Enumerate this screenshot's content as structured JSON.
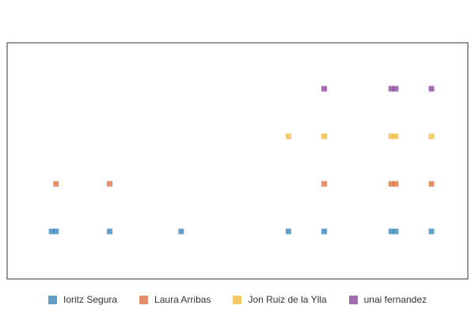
{
  "chart_data": {
    "type": "scatter",
    "title": "",
    "xlabel": "",
    "ylabel": "",
    "grid": false,
    "axes_visible": false,
    "legend_position": "bottom-center",
    "xlim": [
      0,
      100
    ],
    "ylim": [
      0,
      5
    ],
    "series": [
      {
        "name": "Ioritz Segura",
        "color": "#1f77b4",
        "points": [
          {
            "x": 1.0,
            "y": 1
          },
          {
            "x": 2.0,
            "y": 1
          },
          {
            "x": 14.0,
            "y": 1
          },
          {
            "x": 30.0,
            "y": 1
          },
          {
            "x": 54.0,
            "y": 1
          },
          {
            "x": 62.0,
            "y": 1
          },
          {
            "x": 77.0,
            "y": 1
          },
          {
            "x": 78.0,
            "y": 1
          },
          {
            "x": 86.0,
            "y": 1
          }
        ]
      },
      {
        "name": "Laura Arribas",
        "color": "#d95f2b",
        "points": [
          {
            "x": 2.0,
            "y": 2
          },
          {
            "x": 14.0,
            "y": 2
          },
          {
            "x": 62.0,
            "y": 2
          },
          {
            "x": 77.0,
            "y": 2
          },
          {
            "x": 78.0,
            "y": 2
          },
          {
            "x": 86.0,
            "y": 2
          }
        ]
      },
      {
        "name": "Jon Ruiz de la Ylla",
        "color": "#f0b429",
        "points": [
          {
            "x": 54.0,
            "y": 3
          },
          {
            "x": 62.0,
            "y": 3
          },
          {
            "x": 77.0,
            "y": 3
          },
          {
            "x": 78.0,
            "y": 3
          },
          {
            "x": 86.0,
            "y": 3
          }
        ]
      },
      {
        "name": "unai fernandez",
        "color": "#7e2f8e",
        "points": [
          {
            "x": 62.0,
            "y": 4
          },
          {
            "x": 77.0,
            "y": 4
          },
          {
            "x": 78.0,
            "y": 4
          },
          {
            "x": 86.0,
            "y": 4
          }
        ]
      }
    ]
  }
}
